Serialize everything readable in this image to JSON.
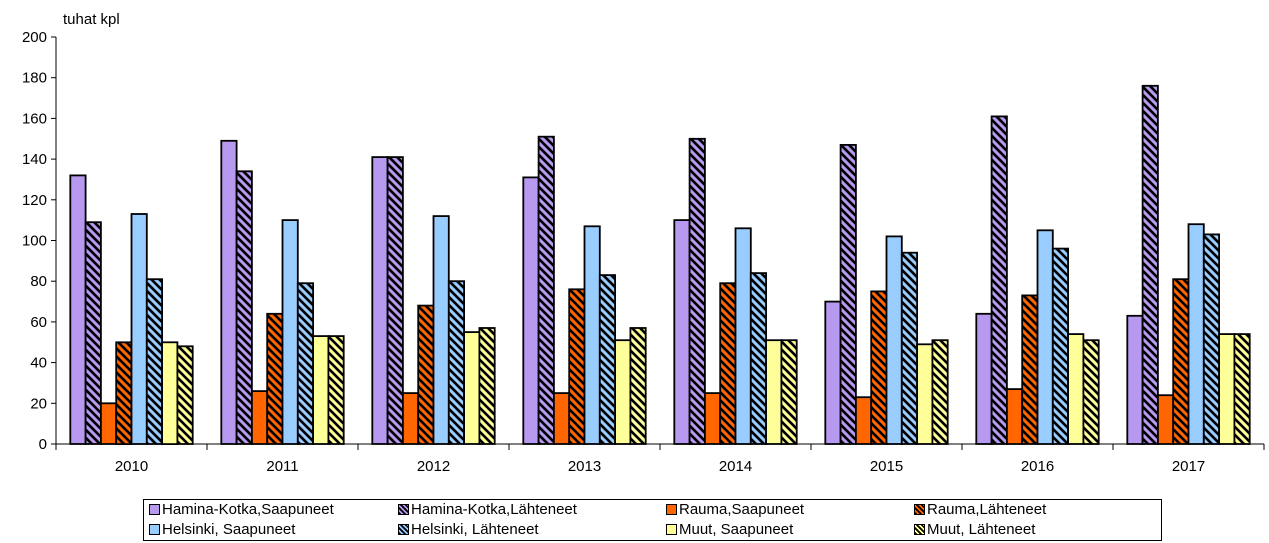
{
  "chart_data": {
    "type": "bar",
    "unit_label": "tuhat kpl",
    "categories": [
      "2010",
      "2011",
      "2012",
      "2013",
      "2014",
      "2015",
      "2016",
      "2017"
    ],
    "ylim": [
      0,
      200
    ],
    "yticks": [
      0,
      20,
      40,
      60,
      80,
      100,
      120,
      140,
      160,
      180,
      200
    ],
    "grid": false,
    "legend_position": "bottom",
    "series": [
      {
        "name": "Hamina-Kotka,Saapuneet",
        "color": "#B799F0",
        "hatched": false,
        "values": [
          132,
          149,
          141,
          131,
          110,
          70,
          64,
          63
        ]
      },
      {
        "name": "Hamina-Kotka,Lähteneet",
        "color": "#B799F0",
        "hatched": true,
        "values": [
          109,
          134,
          141,
          151,
          150,
          147,
          161,
          176
        ]
      },
      {
        "name": "Rauma,Saapuneet",
        "color": "#FF6600",
        "hatched": false,
        "values": [
          20,
          26,
          25,
          25,
          25,
          23,
          27,
          24
        ]
      },
      {
        "name": "Rauma,Lähteneet",
        "color": "#FF6600",
        "hatched": true,
        "values": [
          50,
          64,
          68,
          76,
          79,
          75,
          73,
          81
        ]
      },
      {
        "name": "Helsinki, Saapuneet",
        "color": "#99CCFF",
        "hatched": false,
        "values": [
          113,
          110,
          112,
          107,
          106,
          102,
          105,
          108
        ]
      },
      {
        "name": "Helsinki, Lähteneet",
        "color": "#99CCFF",
        "hatched": true,
        "values": [
          81,
          79,
          80,
          83,
          84,
          94,
          96,
          103
        ]
      },
      {
        "name": "Muut, Saapuneet",
        "color": "#FFFF99",
        "hatched": false,
        "values": [
          50,
          53,
          55,
          51,
          51,
          49,
          54,
          54
        ]
      },
      {
        "name": "Muut, Lähteneet",
        "color": "#FFFF99",
        "hatched": true,
        "values": [
          48,
          53,
          57,
          57,
          51,
          51,
          51,
          54
        ]
      }
    ]
  }
}
